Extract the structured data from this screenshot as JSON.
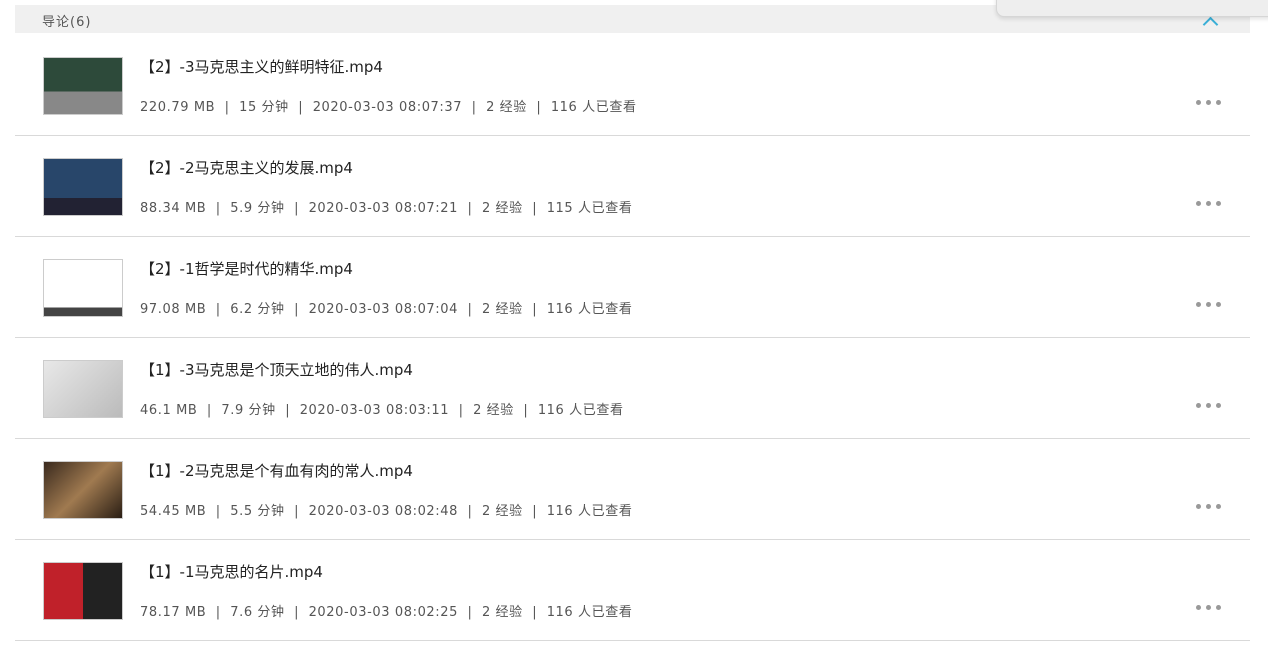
{
  "section": {
    "title": "导论(6)",
    "icon": "chevron-up-icon",
    "accent": "#3ab0d8"
  },
  "items": [
    {
      "title": "【2】-3马克思主义的鲜明特征.mp4",
      "size": "220.79 MB",
      "duration": "15 分钟",
      "date": "2020-03-03 08:07:37",
      "exp": "2 经验",
      "views": "116 人已查看"
    },
    {
      "title": "【2】-2马克思主义的发展.mp4",
      "size": "88.34 MB",
      "duration": "5.9 分钟",
      "date": "2020-03-03 08:07:21",
      "exp": "2 经验",
      "views": "115 人已查看"
    },
    {
      "title": "【2】-1哲学是时代的精华.mp4",
      "size": "97.08 MB",
      "duration": "6.2 分钟",
      "date": "2020-03-03 08:07:04",
      "exp": "2 经验",
      "views": "116 人已查看"
    },
    {
      "title": "【1】-3马克思是个顶天立地的伟人.mp4",
      "size": "46.1 MB",
      "duration": "7.9 分钟",
      "date": "2020-03-03 08:03:11",
      "exp": "2 经验",
      "views": "116 人已查看"
    },
    {
      "title": "【1】-2马克思是个有血有肉的常人.mp4",
      "size": "54.45 MB",
      "duration": "5.5 分钟",
      "date": "2020-03-03 08:02:48",
      "exp": "2 经验",
      "views": "116 人已查看"
    },
    {
      "title": "【1】-1马克思的名片.mp4",
      "size": "78.17 MB",
      "duration": "7.6 分钟",
      "date": "2020-03-03 08:02:25",
      "exp": "2 经验",
      "views": "116 人已查看"
    }
  ]
}
